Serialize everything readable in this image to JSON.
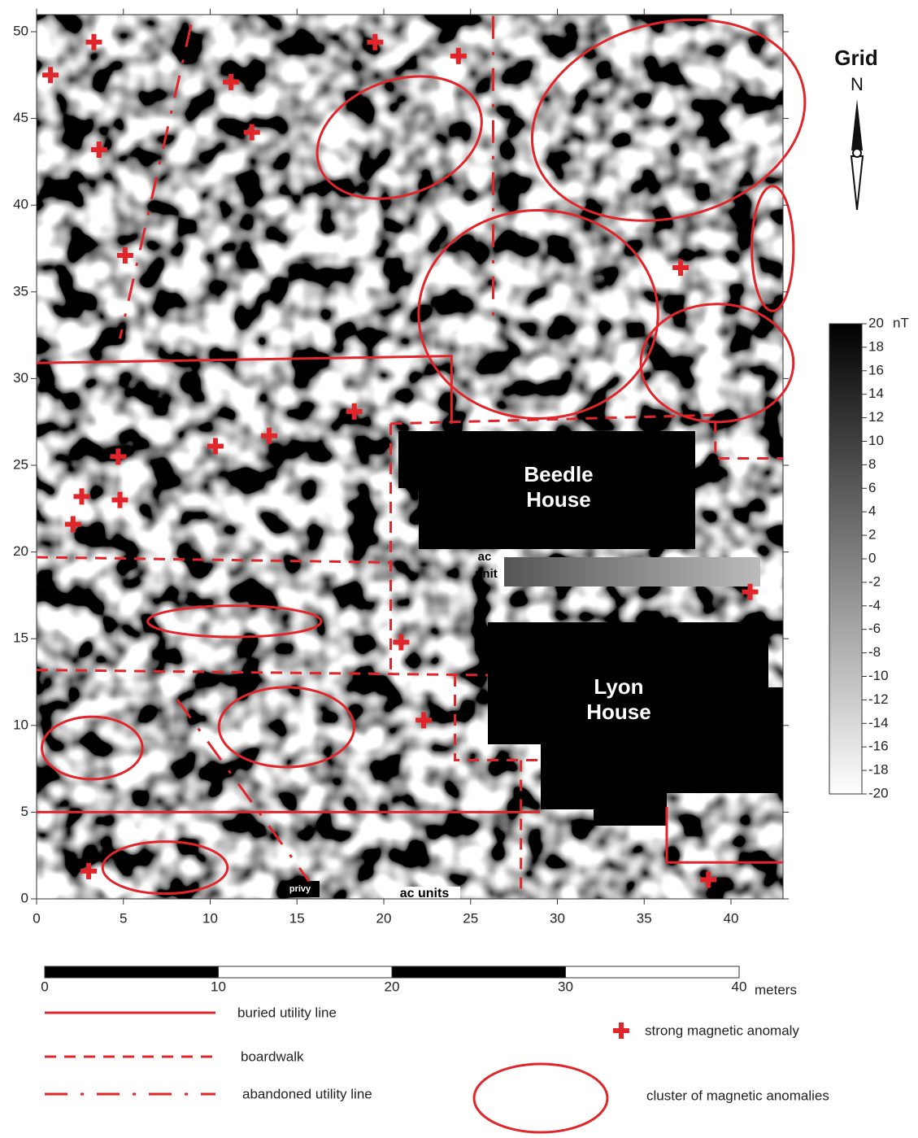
{
  "map": {
    "axes": {
      "xticks": [
        0,
        5,
        10,
        15,
        20,
        25,
        30,
        35,
        40
      ],
      "yticks": [
        0,
        5,
        10,
        15,
        20,
        25,
        30,
        35,
        40,
        45,
        50
      ],
      "xlim": [
        0,
        43
      ],
      "ylim": [
        0,
        51
      ]
    },
    "north": {
      "title": "Grid",
      "letter": "N"
    },
    "colorbar": {
      "ticks": [
        20,
        18,
        16,
        14,
        12,
        10,
        8,
        6,
        4,
        2,
        0,
        -2,
        -4,
        -6,
        -8,
        -10,
        -12,
        -14,
        -16,
        -18,
        -20
      ],
      "unit": "nT",
      "lim": [
        -20,
        20
      ]
    },
    "labels": {
      "beedle": [
        "Beedle",
        "House"
      ],
      "lyon": [
        "Lyon",
        "House"
      ],
      "ac_unit": [
        "ac",
        "unit"
      ],
      "privy": "privy",
      "ac_units": "ac units"
    },
    "scale_bar": {
      "ticks": [
        0,
        10,
        20,
        30,
        40
      ],
      "unit": "meters"
    },
    "legend": {
      "buried": "buried utility line",
      "boardwalk": "boardwalk",
      "abandoned": "abandoned utility line",
      "anomaly": "strong magnetic anomaly",
      "cluster": "cluster of magnetic anomalies"
    },
    "anomalies": {
      "x": [
        3.3,
        19.5,
        24.3,
        0.8,
        11.2,
        12.4,
        3.6,
        5.1,
        37.1,
        18.3,
        13.4,
        10.3,
        4.7,
        2.6,
        4.8,
        2.1,
        41.1,
        21.0,
        22.3,
        3.0,
        38.7
      ],
      "y": [
        49.4,
        49.4,
        48.6,
        47.5,
        47.1,
        44.2,
        43.2,
        37.1,
        36.4,
        28.1,
        26.7,
        26.1,
        25.5,
        23.2,
        23.0,
        21.6,
        17.7,
        14.8,
        10.3,
        1.6,
        1.1
      ]
    },
    "clusters": [
      {
        "x": 20.9,
        "y": 43.9,
        "rx": 4.9,
        "ry": 3.3,
        "rotation": -20
      },
      {
        "x": 36.4,
        "y": 44.9,
        "rx": 8.0,
        "ry": 5.6,
        "rotation": -15
      },
      {
        "x": 42.4,
        "y": 37.5,
        "rx": 1.2,
        "ry": 3.6,
        "rotation": 0
      },
      {
        "x": 28.9,
        "y": 33.7,
        "rx": 6.9,
        "ry": 6.0,
        "rotation": 0
      },
      {
        "x": 39.2,
        "y": 30.9,
        "rx": 4.4,
        "ry": 3.4,
        "rotation": 0
      },
      {
        "x": 11.4,
        "y": 16.0,
        "rx": 5.0,
        "ry": 0.9,
        "rotation": 0
      },
      {
        "x": 14.4,
        "y": 9.9,
        "rx": 3.9,
        "ry": 2.3,
        "rotation": 0
      },
      {
        "x": 3.2,
        "y": 8.7,
        "rx": 2.9,
        "ry": 1.8,
        "rotation": 0
      },
      {
        "x": 7.4,
        "y": 1.8,
        "rx": 3.6,
        "ry": 1.5,
        "rotation": 0
      }
    ],
    "buried_lines": [
      {
        "x": [
          0,
          23.9,
          23.9
        ],
        "y": [
          30.9,
          31.3,
          27.4
        ]
      },
      {
        "x": [
          0,
          29
        ],
        "y": [
          5,
          5
        ]
      },
      {
        "x": [
          36.3,
          36.3,
          43
        ],
        "y": [
          5.3,
          2.1,
          2.1
        ]
      }
    ],
    "boardwalks": [
      {
        "x": [
          0,
          20.4
        ],
        "y": [
          19.7,
          19.4
        ]
      },
      {
        "x": [
          20.4,
          20.4
        ],
        "y": [
          27.4,
          12.9
        ]
      },
      {
        "x": [
          20.4,
          39.1,
          39.1,
          43
        ],
        "y": [
          27.4,
          27.9,
          25.4,
          25.4
        ]
      },
      {
        "x": [
          0,
          26
        ],
        "y": [
          13.2,
          12.9
        ]
      },
      {
        "x": [
          24.1,
          24.1,
          29
        ],
        "y": [
          12.9,
          8.0,
          8.0
        ]
      },
      {
        "x": [
          27.9,
          27.9
        ],
        "y": [
          8.0,
          0.2
        ]
      }
    ],
    "abandoned_lines": [
      {
        "x": [
          8.9,
          4.8
        ],
        "y": [
          50.4,
          32.3
        ]
      },
      {
        "x": [
          26.3,
          26.3
        ],
        "y": [
          50.9,
          33.3
        ]
      },
      {
        "x": [
          8.1,
          15.7
        ],
        "y": [
          11.5,
          1.0
        ]
      }
    ]
  }
}
